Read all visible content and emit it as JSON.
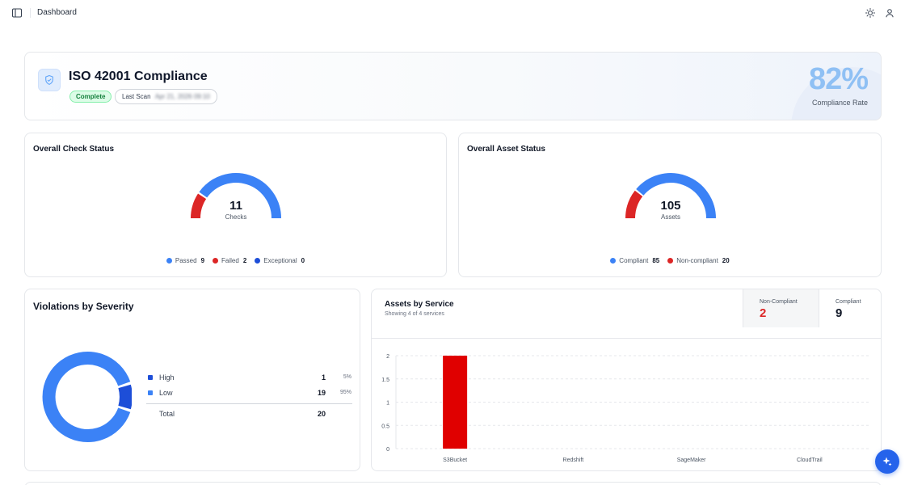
{
  "topbar": {
    "breadcrumb": "Dashboard"
  },
  "hero": {
    "title": "ISO 42001 Compliance",
    "status_badge": "Complete",
    "last_scan_label": "Last Scan",
    "last_scan_value": "Apr 21, 2026 09:10",
    "rate_value": "82%",
    "rate_label": "Compliance Rate"
  },
  "check_status": {
    "title": "Overall Check Status",
    "total": "11",
    "unit": "Checks",
    "legend": [
      {
        "label": "Passed",
        "value": "9",
        "color": "#3b82f6"
      },
      {
        "label": "Failed",
        "value": "2",
        "color": "#dc2626"
      },
      {
        "label": "Exceptional",
        "value": "0",
        "color": "#1d4ed8"
      }
    ]
  },
  "asset_status": {
    "title": "Overall Asset Status",
    "total": "105",
    "unit": "Assets",
    "legend": [
      {
        "label": "Compliant",
        "value": "85",
        "color": "#3b82f6"
      },
      {
        "label": "Non-compliant",
        "value": "20",
        "color": "#dc2626"
      }
    ]
  },
  "violations": {
    "title": "Violations by Severity",
    "rows": [
      {
        "label": "High",
        "count": "1",
        "pct": "5%",
        "color": "#1d4ed8"
      },
      {
        "label": "Low",
        "count": "19",
        "pct": "95%",
        "color": "#3b82f6"
      }
    ],
    "total_label": "Total",
    "total_value": "20"
  },
  "assets_by_service": {
    "title": "Assets by Service",
    "subtitle": "Showing 4 of 4 services",
    "non_compliant_label": "Non-Compliant",
    "non_compliant_value": "2",
    "compliant_label": "Compliant",
    "compliant_value": "9"
  },
  "chart_data": {
    "type": "bar",
    "categories": [
      "S3Bucket",
      "Redshift",
      "SageMaker",
      "CloudTrail"
    ],
    "series": [
      {
        "values": [
          2,
          0,
          0,
          0
        ],
        "color": "#e00000"
      }
    ],
    "yticks": [
      "0",
      "0.5",
      "1",
      "1.5",
      "2"
    ],
    "ylim": [
      0,
      2
    ],
    "grid": true
  },
  "colors": {
    "accent": "#3b82f6",
    "danger": "#dc2626",
    "success": "#15803d"
  }
}
